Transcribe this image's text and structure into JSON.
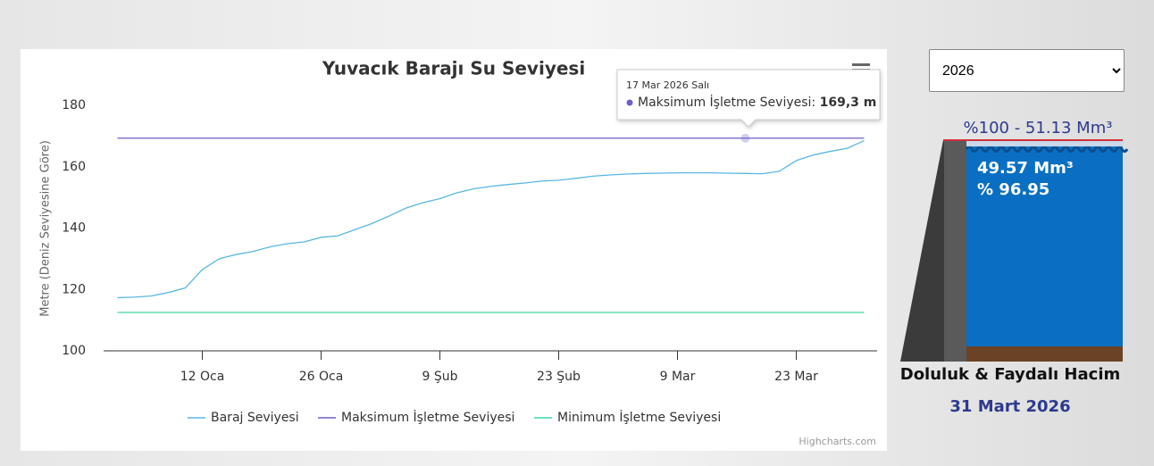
{
  "chart_data": {
    "type": "line",
    "title": "Yuvacık Barajı Su Seviyesi",
    "y_axis_title": "Metre (Deniz Seviyesine Göre)",
    "categories": [
      null,
      null,
      null,
      null,
      null,
      "12 Oca",
      null,
      null,
      null,
      null,
      null,
      null,
      "26 Oca",
      null,
      null,
      null,
      null,
      null,
      null,
      "9 Şub",
      null,
      null,
      null,
      null,
      null,
      null,
      "23 Şub",
      null,
      null,
      null,
      null,
      null,
      null,
      "9 Mar",
      null,
      null,
      null,
      null,
      null,
      null,
      "23 Mar",
      null,
      null,
      null,
      null
    ],
    "series": [
      {
        "name": "Baraj Seviyesi",
        "color": "#5ab6e4",
        "values": [
          117.3,
          117.5,
          117.9,
          119.0,
          120.5,
          126.5,
          130.0,
          131.4,
          132.4,
          133.9,
          134.9,
          135.5,
          137.0,
          137.5,
          139.5,
          141.5,
          143.9,
          146.5,
          148.3,
          149.6,
          151.5,
          152.8,
          153.6,
          154.2,
          154.7,
          155.3,
          155.6,
          156.2,
          156.9,
          157.3,
          157.6,
          157.8,
          157.9,
          158.0,
          158.0,
          158.0,
          157.9,
          157.8,
          157.7,
          158.5,
          162.0,
          163.8,
          165.0,
          166.0,
          168.5
        ]
      },
      {
        "name": "Maksimum İşletme Seviyesi",
        "color": "#6c5fd0",
        "values": [
          169.3,
          169.3,
          169.3,
          169.3,
          169.3,
          169.3,
          169.3,
          169.3,
          169.3,
          169.3,
          169.3,
          169.3,
          169.3,
          169.3,
          169.3,
          169.3,
          169.3,
          169.3,
          169.3,
          169.3,
          169.3,
          169.3,
          169.3,
          169.3,
          169.3,
          169.3,
          169.3,
          169.3,
          169.3,
          169.3,
          169.3,
          169.3,
          169.3,
          169.3,
          169.3,
          169.3,
          169.3,
          169.3,
          169.3,
          169.3,
          169.3,
          169.3,
          169.3,
          169.3,
          169.3
        ]
      },
      {
        "name": "Minimum İşletme Seviyesi",
        "color": "#3fd89b",
        "values": [
          112.5,
          112.5,
          112.5,
          112.5,
          112.5,
          112.5,
          112.5,
          112.5,
          112.5,
          112.5,
          112.5,
          112.5,
          112.5,
          112.5,
          112.5,
          112.5,
          112.5,
          112.5,
          112.5,
          112.5,
          112.5,
          112.5,
          112.5,
          112.5,
          112.5,
          112.5,
          112.5,
          112.5,
          112.5,
          112.5,
          112.5,
          112.5,
          112.5,
          112.5,
          112.5,
          112.5,
          112.5,
          112.5,
          112.5,
          112.5,
          112.5,
          112.5,
          112.5,
          112.5,
          112.5
        ]
      }
    ],
    "ylim": [
      100,
      180
    ],
    "yticks": [
      100,
      120,
      140,
      160,
      180
    ],
    "grid": false,
    "tooltip": {
      "date": "17 Mar 2026 Salı",
      "value_label": "169,3 m"
    },
    "credits": "Highcharts.com"
  },
  "side_panel": {
    "year": "2026",
    "capacity_label": "%100 - 51.13 Mm³",
    "volume_label": "49.57 Mm³",
    "fill_percent": {
      "value": 96.95,
      "label": "% 96.95"
    },
    "caption": "Doluluk & Faydalı Hacim",
    "date": "31 Mart 2026"
  }
}
